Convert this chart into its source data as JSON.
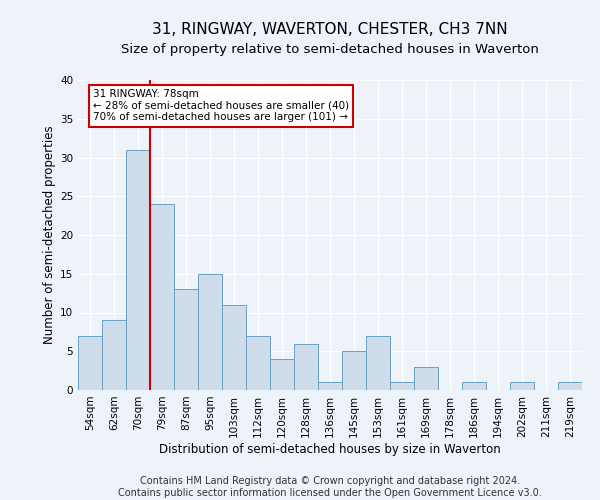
{
  "title": "31, RINGWAY, WAVERTON, CHESTER, CH3 7NN",
  "subtitle": "Size of property relative to semi-detached houses in Waverton",
  "xlabel": "Distribution of semi-detached houses by size in Waverton",
  "ylabel": "Number of semi-detached properties",
  "categories": [
    "54sqm",
    "62sqm",
    "70sqm",
    "79sqm",
    "87sqm",
    "95sqm",
    "103sqm",
    "112sqm",
    "120sqm",
    "128sqm",
    "136sqm",
    "145sqm",
    "153sqm",
    "161sqm",
    "169sqm",
    "178sqm",
    "186sqm",
    "194sqm",
    "202sqm",
    "211sqm",
    "219sqm"
  ],
  "values": [
    7,
    9,
    31,
    24,
    13,
    15,
    11,
    7,
    4,
    6,
    1,
    5,
    7,
    1,
    3,
    0,
    1,
    0,
    1,
    0,
    1
  ],
  "bar_color": "#cfdcea",
  "bar_edge_color": "#6aa0c7",
  "reference_line_color": "#cc0000",
  "annotation_text": "31 RINGWAY: 78sqm\n← 28% of semi-detached houses are smaller (40)\n70% of semi-detached houses are larger (101) →",
  "annotation_box_color": "#ffffff",
  "annotation_box_edge": "#cc0000",
  "ylim": [
    0,
    40
  ],
  "yticks": [
    0,
    5,
    10,
    15,
    20,
    25,
    30,
    35,
    40
  ],
  "footer": "Contains HM Land Registry data © Crown copyright and database right 2024.\nContains public sector information licensed under the Open Government Licence v3.0.",
  "bg_color": "#eef2f9",
  "plot_bg_color": "#eef2f9",
  "grid_color": "#ffffff",
  "title_fontsize": 11,
  "subtitle_fontsize": 9.5,
  "axis_label_fontsize": 8.5,
  "tick_fontsize": 7.5,
  "footer_fontsize": 7,
  "ref_line_index": 2
}
